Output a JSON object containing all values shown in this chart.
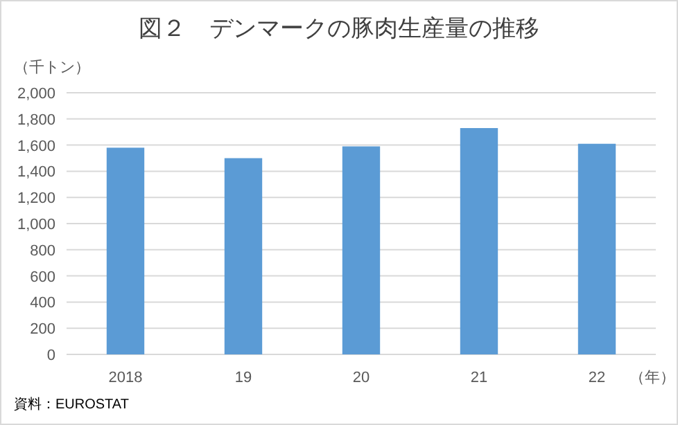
{
  "chart_data": {
    "type": "bar",
    "title": "図２　デンマークの豚肉生産量の推移",
    "ylabel": "（千トン）",
    "xlabel": "（年）",
    "categories": [
      "2018",
      "19",
      "20",
      "21",
      "22"
    ],
    "series": [
      {
        "color": "#5b9bd5",
        "values": [
          1580,
          1500,
          1590,
          1730,
          1610
        ]
      }
    ],
    "ylim": [
      0,
      2000
    ],
    "yticks": [
      {
        "value": 0,
        "label": "0"
      },
      {
        "value": 200,
        "label": "200"
      },
      {
        "value": 400,
        "label": "400"
      },
      {
        "value": 600,
        "label": "600"
      },
      {
        "value": 800,
        "label": "800"
      },
      {
        "value": 1000,
        "label": "1,000"
      },
      {
        "value": 1200,
        "label": "1,200"
      },
      {
        "value": 1400,
        "label": "1,400"
      },
      {
        "value": 1600,
        "label": "1,600"
      },
      {
        "value": 1800,
        "label": "1,800"
      },
      {
        "value": 2000,
        "label": "2,000"
      }
    ],
    "grid": "y",
    "annotations": [
      "資料：EUROSTAT"
    ]
  }
}
